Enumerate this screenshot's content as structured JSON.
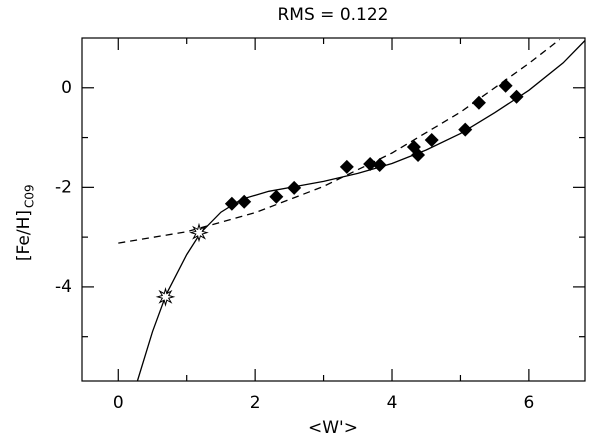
{
  "chart_data": {
    "type": "scatter",
    "title": "RMS = 0.122",
    "xlabel": "<W'>",
    "ylabel": "[Fe/H]",
    "ylabel_sub": "C09",
    "xlim": [
      -0.53,
      6.82
    ],
    "ylim": [
      -5.89,
      1.0
    ],
    "xticks": [
      0,
      2,
      4,
      6
    ],
    "yticks": [
      -4,
      -2,
      0
    ],
    "minor_xticks": [
      1,
      3,
      5
    ],
    "minor_yticks": [
      -5,
      -3,
      -1
    ],
    "points": {
      "color": "#000000",
      "x": [
        1.66,
        1.84,
        2.31,
        2.57,
        3.34,
        3.68,
        3.82,
        4.32,
        4.38,
        4.58,
        5.07,
        5.27,
        5.66,
        5.82
      ],
      "y": [
        -2.33,
        -2.29,
        -2.19,
        -2.01,
        -1.59,
        -1.53,
        -1.55,
        -1.19,
        -1.35,
        -1.05,
        -0.84,
        -0.3,
        0.04,
        -0.18
      ]
    },
    "calibrators": {
      "color": "#000000",
      "x": [
        0.69,
        1.18
      ],
      "y": [
        -4.2,
        -2.91
      ]
    },
    "fit_curve": {
      "color": "#000000",
      "dashed": false,
      "x": [
        0.28,
        0.5,
        0.7,
        1.0,
        1.2,
        1.5,
        1.8,
        2.2,
        2.6,
        3.0,
        3.5,
        4.0,
        4.5,
        5.0,
        5.5,
        6.0,
        6.5,
        6.82
      ],
      "y": [
        -5.89,
        -4.9,
        -4.15,
        -3.35,
        -2.92,
        -2.5,
        -2.24,
        -2.08,
        -1.98,
        -1.88,
        -1.72,
        -1.52,
        -1.25,
        -0.92,
        -0.5,
        -0.05,
        0.5,
        0.95
      ]
    },
    "dashed_curve": {
      "color": "#000000",
      "dashed": true,
      "x": [
        0,
        1,
        2,
        3,
        4,
        5,
        6,
        6.45
      ],
      "y": [
        -3.12,
        -2.89,
        -2.51,
        -1.98,
        -1.31,
        -0.49,
        0.49,
        0.97
      ]
    }
  }
}
